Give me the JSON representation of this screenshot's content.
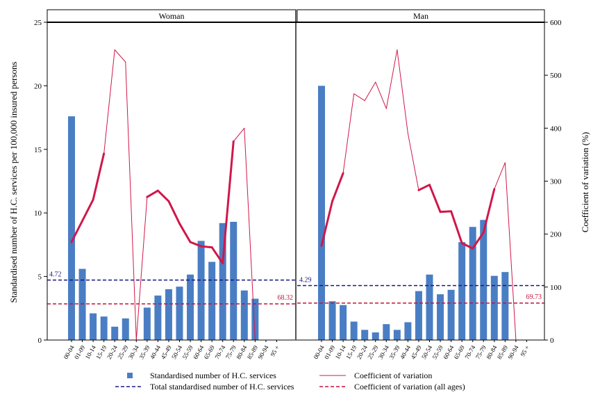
{
  "chart_data": {
    "type": "bar+line",
    "ylabel_left": "Standardised number of H.C. services per 100,000 insured persons",
    "ylabel_right": "Coefficient of variation (%)",
    "ylim_left": [
      0,
      25
    ],
    "yticks_left": [
      "0",
      "5",
      "10",
      "15",
      "20",
      "25"
    ],
    "ylim_right": [
      0,
      600
    ],
    "yticks_right": [
      "0",
      "100",
      "200",
      "300",
      "400",
      "500",
      "600"
    ],
    "categories": [
      "00-04",
      "01-09",
      "10-14",
      "15-19",
      "20-24",
      "25-29",
      "30-34",
      "35-39",
      "40-44",
      "45-49",
      "50-54",
      "55-59",
      "60-64",
      "65-69",
      "70-74",
      "75-79",
      "80-84",
      "85-89",
      "90-94",
      "95 +"
    ],
    "colors": {
      "bar": "#4a7ec4",
      "cv_line": "#d0174a",
      "total_line": "#1a1a80",
      "cv_all_line": "#c0143c"
    },
    "legend": {
      "bars": "Standardised number of H.C. services",
      "cv": "Coefficient of variation",
      "total": "Total standardised number of H.C. services",
      "cv_all": "Coefficient of variation (all ages)"
    },
    "panels": [
      {
        "name": "Woman",
        "bars": [
          17.6,
          5.6,
          2.1,
          1.85,
          1.05,
          1.7,
          null,
          2.55,
          3.5,
          4.0,
          4.2,
          5.15,
          7.8,
          6.15,
          9.2,
          9.3,
          3.9,
          3.25,
          null,
          null
        ],
        "cv": [
          185,
          225,
          265,
          352,
          548,
          525,
          0,
          270,
          282,
          262,
          220,
          185,
          177,
          175,
          145,
          375,
          400,
          0,
          null,
          null
        ],
        "cv_thick": [
          true,
          true,
          true,
          false,
          false,
          false,
          false,
          true,
          true,
          true,
          true,
          true,
          true,
          true,
          true,
          false,
          false,
          false,
          false
        ],
        "total": 4.72,
        "total_label": "4.72",
        "cv_all": 68.32,
        "cv_all_label": "68.32"
      },
      {
        "name": "Man",
        "bars": [
          20.0,
          3.05,
          2.75,
          1.45,
          0.8,
          0.6,
          1.25,
          0.8,
          1.4,
          3.85,
          5.15,
          3.6,
          3.95,
          7.7,
          8.9,
          9.45,
          5.05,
          5.35,
          null,
          null
        ],
        "cv": [
          178,
          262,
          315,
          465,
          452,
          487,
          437,
          548,
          390,
          283,
          293,
          242,
          243,
          183,
          173,
          203,
          285,
          335,
          0,
          null
        ],
        "cv_thick": [
          true,
          true,
          false,
          false,
          false,
          false,
          false,
          false,
          false,
          true,
          true,
          true,
          true,
          true,
          true,
          true,
          false,
          false,
          false
        ],
        "total": 4.29,
        "total_label": "4.29",
        "cv_all": 69.73,
        "cv_all_label": "69.73"
      }
    ]
  }
}
